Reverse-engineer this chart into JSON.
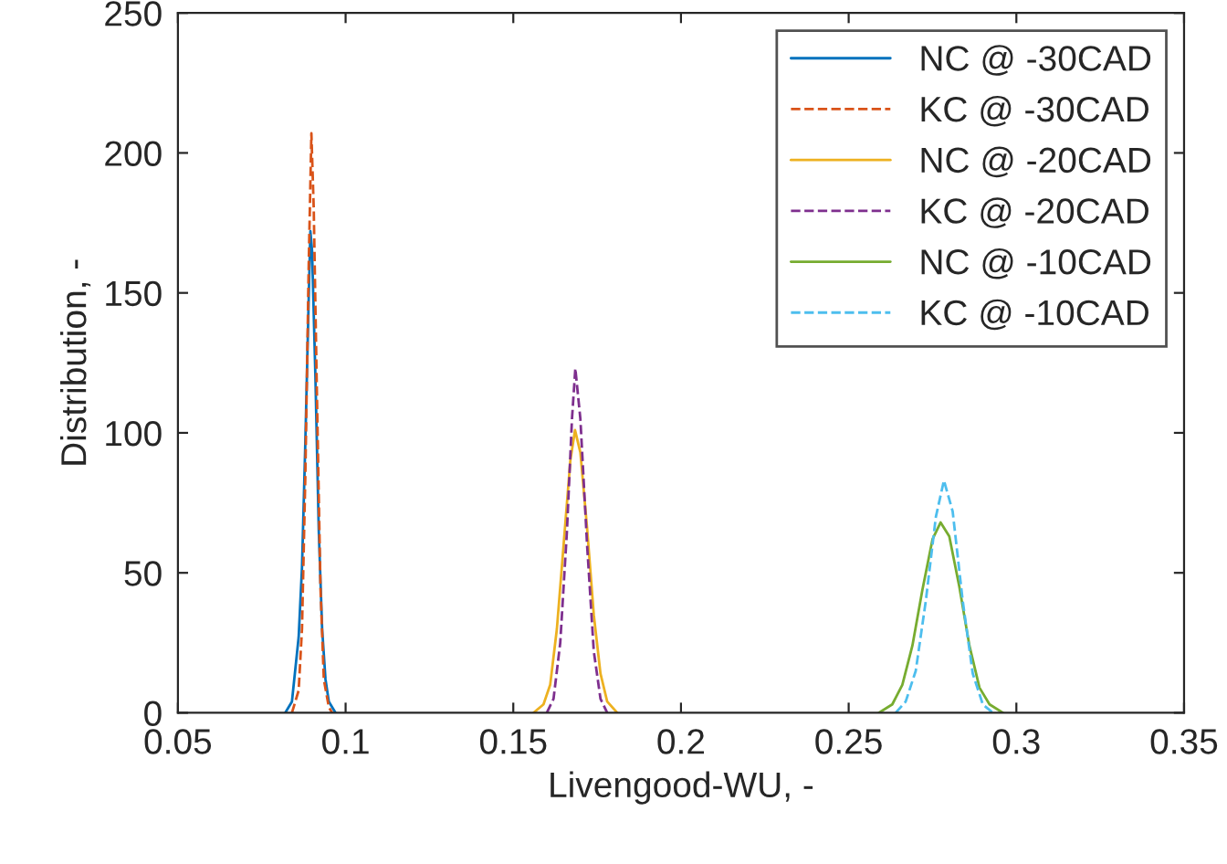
{
  "chart_data": {
    "type": "line",
    "xlabel": "Livengood-WU, -",
    "ylabel": "Distribution, -",
    "xlim": [
      0.05,
      0.35
    ],
    "xticks": [
      0.05,
      0.1,
      0.15,
      0.2,
      0.25,
      0.3,
      0.35
    ],
    "ylim": [
      0,
      250
    ],
    "yticks": [
      0,
      50,
      100,
      150,
      200,
      250
    ],
    "grid": false,
    "legend": "top right",
    "marker": "none",
    "series": [
      {
        "name": "NC @ -30CAD",
        "color": "#0072bd",
        "line_style": "solid",
        "x": [
          0.082,
          0.084,
          0.086,
          0.087,
          0.088,
          0.089,
          0.0895,
          0.09,
          0.091,
          0.092,
          0.093,
          0.094,
          0.095,
          0.097
        ],
        "values": [
          0,
          4,
          27,
          52,
          97,
          148,
          172,
          165,
          120,
          65,
          30,
          12,
          4,
          0
        ]
      },
      {
        "name": "KC @ -30CAD",
        "color": "#d95319",
        "line_style": "dashed",
        "x": [
          0.084,
          0.086,
          0.087,
          0.088,
          0.089,
          0.0898,
          0.0905,
          0.0915,
          0.0925,
          0.0935,
          0.095,
          0.096
        ],
        "values": [
          0,
          8,
          30,
          85,
          160,
          207,
          180,
          110,
          45,
          12,
          2,
          0
        ]
      },
      {
        "name": "NC @ -20CAD",
        "color": "#edb120",
        "line_style": "solid",
        "x": [
          0.156,
          0.159,
          0.161,
          0.163,
          0.165,
          0.167,
          0.1684,
          0.17,
          0.172,
          0.174,
          0.176,
          0.178,
          0.181
        ],
        "values": [
          0,
          3,
          10,
          30,
          60,
          90,
          101,
          93,
          66,
          35,
          14,
          4,
          0
        ]
      },
      {
        "name": "KC @ -20CAD",
        "color": "#7e2f8e",
        "line_style": "dashed",
        "x": [
          0.16,
          0.162,
          0.164,
          0.166,
          0.1675,
          0.1685,
          0.17,
          0.172,
          0.174,
          0.176,
          0.178
        ],
        "values": [
          0,
          5,
          25,
          65,
          105,
          123,
          105,
          60,
          22,
          5,
          0
        ]
      },
      {
        "name": "NC @ -10CAD",
        "color": "#77ac30",
        "line_style": "solid",
        "x": [
          0.259,
          0.263,
          0.266,
          0.269,
          0.272,
          0.275,
          0.2774,
          0.28,
          0.283,
          0.286,
          0.289,
          0.292,
          0.296
        ],
        "values": [
          0,
          3,
          10,
          24,
          44,
          62,
          68,
          63,
          45,
          24,
          9,
          3,
          0
        ]
      },
      {
        "name": "KC @ -10CAD",
        "color": "#4dbeee",
        "line_style": "dashed",
        "x": [
          0.264,
          0.267,
          0.27,
          0.273,
          0.276,
          0.2784,
          0.281,
          0.284,
          0.287,
          0.29,
          0.293
        ],
        "values": [
          0,
          4,
          15,
          40,
          70,
          83,
          72,
          40,
          14,
          3,
          0
        ]
      }
    ]
  }
}
